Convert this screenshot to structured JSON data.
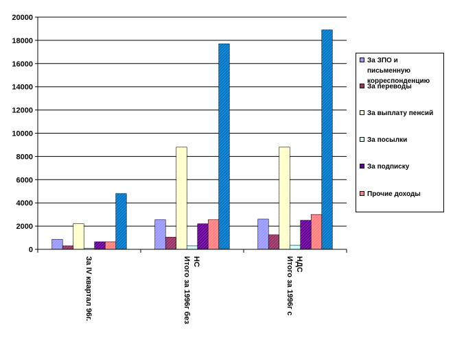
{
  "chart_data": {
    "type": "bar",
    "categories": [
      [
        "За IV квартал 96г."
      ],
      [
        "Итого за 1996г без",
        "НС"
      ],
      [
        "Итого за 1996г с",
        "НДС"
      ]
    ],
    "series": [
      {
        "name": "За ЗПО и письменную корреспонденцию",
        "values": [
          850,
          2550,
          2600
        ]
      },
      {
        "name": "За переводы",
        "values": [
          300,
          1050,
          1250
        ]
      },
      {
        "name": "За выплату пенсий",
        "values": [
          2200,
          8800,
          8800
        ]
      },
      {
        "name": "За посылки",
        "values": [
          100,
          300,
          350
        ]
      },
      {
        "name": "За подписку",
        "values": [
          650,
          2200,
          2500
        ]
      },
      {
        "name": "Прочие доходы",
        "values": [
          650,
          2550,
          3000
        ]
      },
      {
        "name": "",
        "values": [
          4800,
          17700,
          18900
        ]
      }
    ],
    "ylim": [
      0,
      20000
    ],
    "yticks": [
      "0",
      "2000",
      "4000",
      "6000",
      "8000",
      "10000",
      "12000",
      "14000",
      "16000",
      "18000",
      "20000"
    ],
    "grid": true,
    "legend": "right",
    "colors": [
      "#9999ff",
      "#993366",
      "#ffffcc",
      "#ccffff",
      "#660099",
      "#ff8080",
      "#0077c8"
    ]
  }
}
